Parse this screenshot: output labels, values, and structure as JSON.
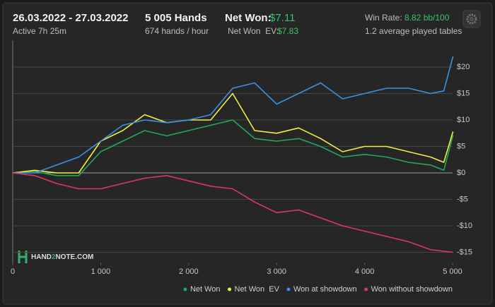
{
  "header": {
    "date_range": "26.03.2022 - 27.03.2022",
    "active": "Active 7h 25m",
    "hands": "5 005 Hands",
    "hands_per_hour": "674 hands / hour",
    "net_won_label": "Net Won:",
    "net_won_value": "$7.11",
    "net_won_ev_label": "Net Won  EV:",
    "net_won_ev_value": "$7.83",
    "win_rate_label": "Win Rate:",
    "win_rate_value": "8.82 bb/100",
    "tables": "1.2 average played tables",
    "logo": [
      "HAND",
      "2",
      "NOTE.COM"
    ]
  },
  "chart_data": {
    "type": "line",
    "x": [
      0,
      250,
      500,
      750,
      1000,
      1250,
      1500,
      1750,
      2000,
      2250,
      2500,
      2750,
      3000,
      3250,
      3500,
      3750,
      4000,
      4250,
      4500,
      4750,
      4900,
      5005
    ],
    "series": [
      {
        "name": "Net Won",
        "color": "#22a85c",
        "values": [
          0,
          0.3,
          -0.5,
          -0.5,
          4,
          6,
          8,
          7,
          8,
          9,
          10,
          6.5,
          6,
          6.5,
          5,
          3,
          3.5,
          3,
          2,
          1.5,
          0.5,
          7.1
        ]
      },
      {
        "name": "Net Won  EV",
        "color": "#f0f03c",
        "values": [
          0,
          0.5,
          0,
          0,
          6,
          8,
          11,
          9.5,
          10,
          10,
          15,
          8,
          7.5,
          8.5,
          6.5,
          4,
          5,
          5,
          4,
          3,
          2,
          7.8
        ]
      },
      {
        "name": "Won at showdown",
        "color": "#3d8fe0",
        "values": [
          0,
          0,
          1.5,
          3,
          6,
          9,
          10,
          9.5,
          10,
          11,
          16,
          17,
          13,
          15,
          17,
          14,
          15,
          16,
          16,
          15,
          15.5,
          22
        ]
      },
      {
        "name": "Won without showdown",
        "color": "#e0336b",
        "values": [
          0,
          -0.5,
          -2,
          -3,
          -3,
          -2,
          -1,
          -0.5,
          -1.5,
          -2.5,
          -3,
          -5.5,
          -7.5,
          -7,
          -8.5,
          -10,
          -11,
          -12,
          -13,
          -14.5,
          -14.8,
          -15
        ]
      }
    ],
    "xlim": [
      0,
      5000
    ],
    "xticks": [
      0,
      {
        "value": 1000,
        "label": "1 000"
      },
      {
        "value": 2000,
        "label": "2 000"
      },
      {
        "value": 3000,
        "label": "3 000"
      },
      {
        "value": 4000,
        "label": "4 000"
      },
      {
        "value": 5000,
        "label": "5 000"
      }
    ],
    "ylim": [
      -17,
      25
    ],
    "yticks": [
      {
        "value": -15,
        "label": "-$15"
      },
      {
        "value": -10,
        "label": "-$10"
      },
      {
        "value": -5,
        "label": "-$5"
      },
      {
        "value": 0,
        "label": "$0"
      },
      {
        "value": 5,
        "label": "$5"
      },
      {
        "value": 10,
        "label": "$10"
      },
      {
        "value": 15,
        "label": "$15"
      },
      {
        "value": 20,
        "label": "$20"
      }
    ],
    "grid": true
  }
}
